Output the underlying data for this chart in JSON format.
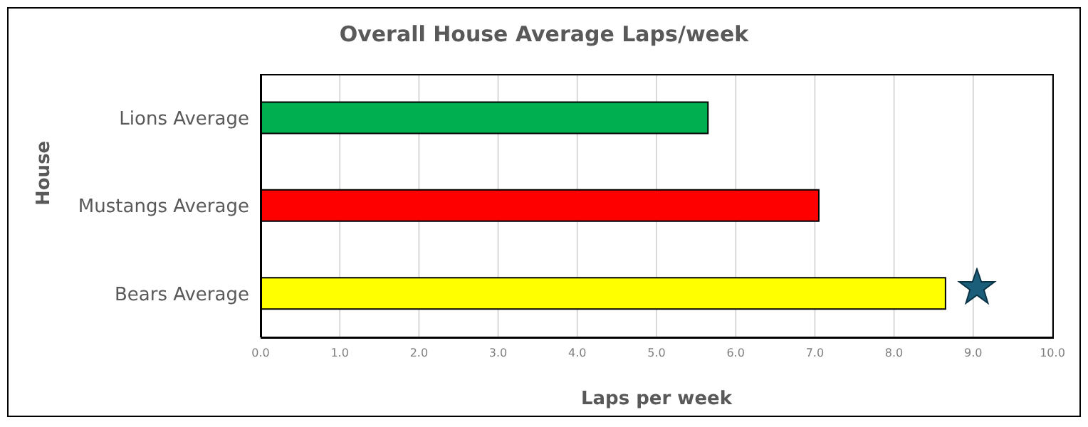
{
  "chart_data": {
    "type": "bar",
    "orientation": "horizontal",
    "title": "Overall House Average Laps/week",
    "xlabel": "Laps per week",
    "ylabel": "House",
    "categories": [
      "Lions Average",
      "Mustangs Average",
      "Bears Average"
    ],
    "values": [
      5.65,
      7.05,
      8.65
    ],
    "colors": [
      "#00b050",
      "#ff0000",
      "#ffff00"
    ],
    "xlim": [
      0,
      10
    ],
    "xticks": [
      {
        "value": 0,
        "label": "0.0"
      },
      {
        "value": 1,
        "label": "1.0"
      },
      {
        "value": 2,
        "label": "2.0"
      },
      {
        "value": 3,
        "label": "3.0"
      },
      {
        "value": 4,
        "label": "4.0"
      },
      {
        "value": 5,
        "label": "5.0"
      },
      {
        "value": 6,
        "label": "6.0"
      },
      {
        "value": 7,
        "label": "7.0"
      },
      {
        "value": 8,
        "label": "8.0"
      },
      {
        "value": 9,
        "label": "9.0"
      },
      {
        "value": 10,
        "label": "10.0"
      }
    ],
    "grid": "x"
  }
}
